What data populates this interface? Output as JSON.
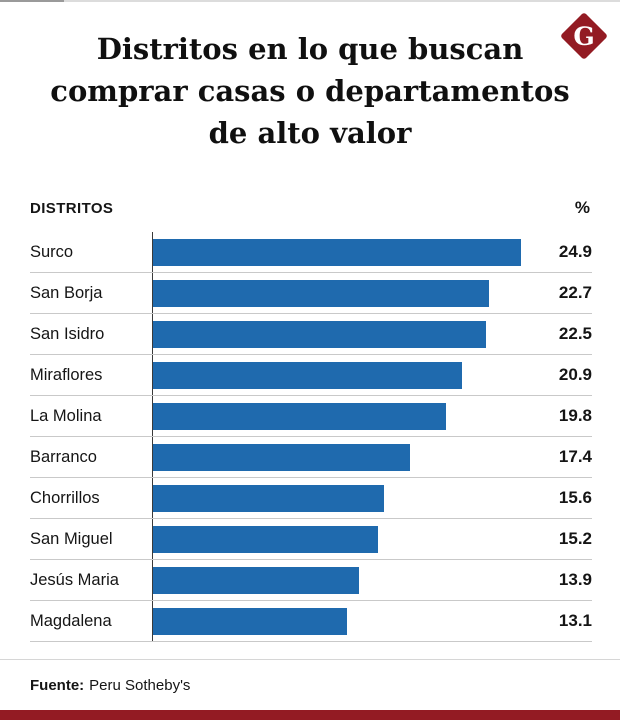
{
  "page": {
    "title_lines": [
      "Distritos en lo que buscan",
      "comprar casas o departamentos",
      "de alto valor"
    ],
    "logo_letter": "G"
  },
  "chart_data": {
    "type": "bar",
    "orientation": "horizontal",
    "title": "Distritos en lo que buscan comprar casas o departamentos de alto valor",
    "column_header": "DISTRITOS",
    "value_header": "%",
    "categories": [
      "Surco",
      "San Borja",
      "San Isidro",
      "Miraflores",
      "La Molina",
      "Barranco",
      "Chorrillos",
      "San Miguel",
      "Jesús Maria",
      "Magdalena"
    ],
    "values": [
      24.9,
      22.7,
      22.5,
      20.9,
      19.8,
      17.4,
      15.6,
      15.2,
      13.9,
      13.1
    ],
    "xlim": [
      0,
      25.5
    ],
    "grid": "row-separators",
    "legend": "none"
  },
  "footer": {
    "source_label": "Fuente:",
    "source_value": "Peru Sotheby's"
  },
  "colors": {
    "bar": "#1f6aae",
    "brand_red": "#931b23",
    "separator": "#c9c9c9"
  }
}
